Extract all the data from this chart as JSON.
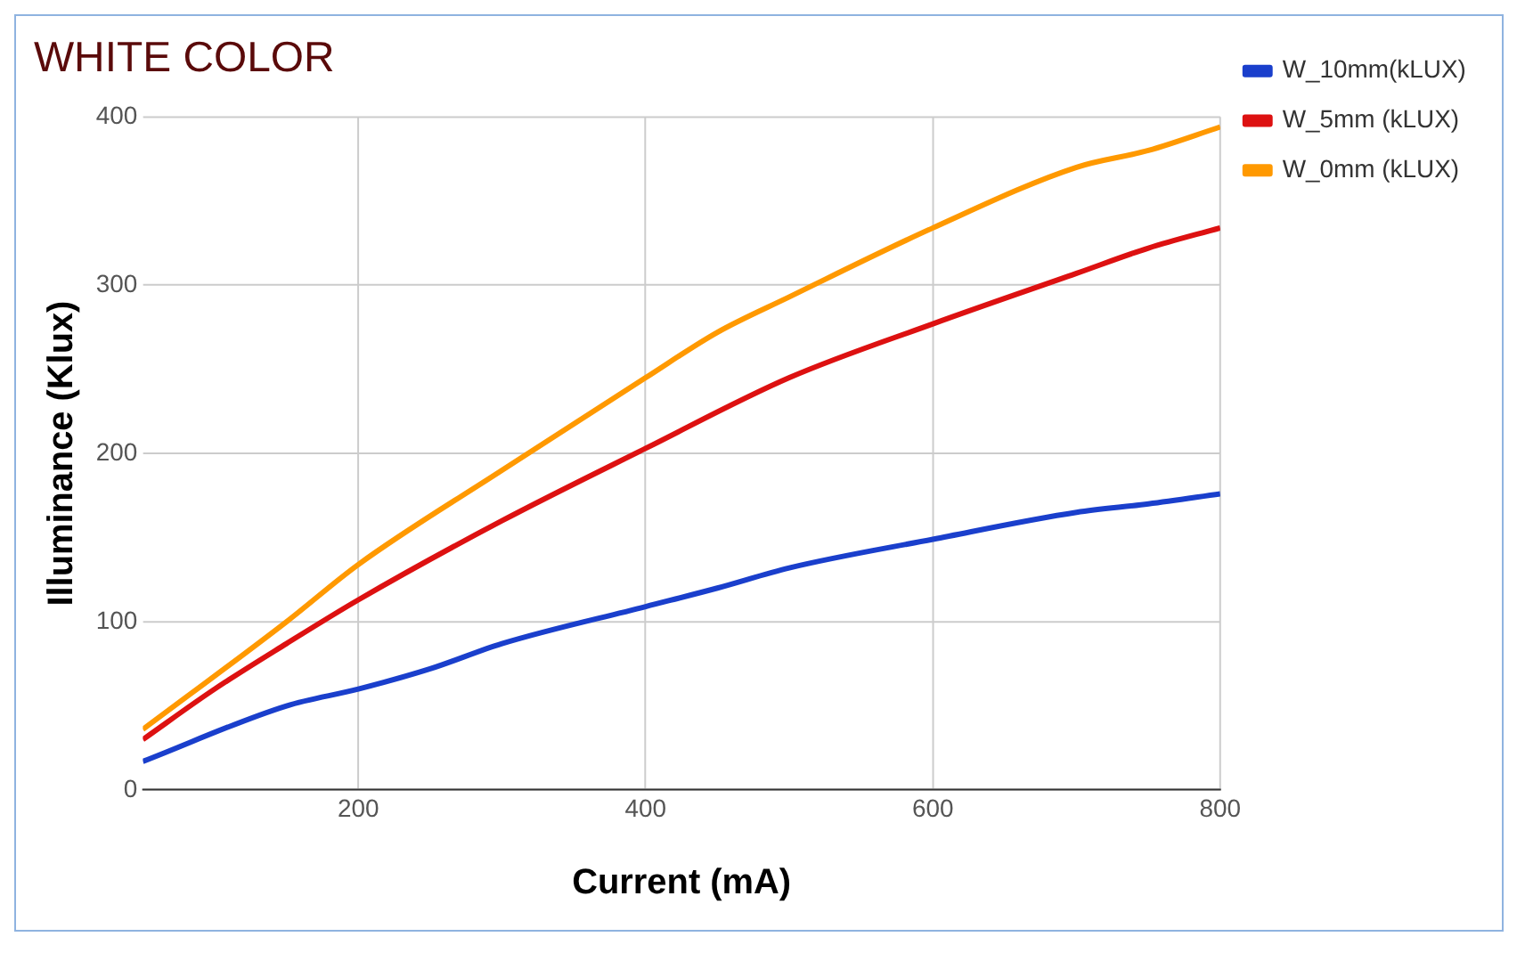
{
  "chart_data": {
    "type": "line",
    "title": "WHITE COLOR",
    "xlabel": "Current (mA)",
    "ylabel": "Illuminance (Klux)",
    "xlim": [
      50,
      800
    ],
    "xticks": [
      200,
      400,
      600,
      800
    ],
    "ylim": [
      0,
      400
    ],
    "yticks": [
      0,
      100,
      200,
      300,
      400
    ],
    "grid": true,
    "legend": "top right",
    "marker": "none",
    "line_style": "solid",
    "series": [
      {
        "name": "W_10mm(kLUX)",
        "color": "#1a3fcc",
        "x": [
          50,
          150,
          200,
          250,
          300,
          400,
          450,
          500,
          600,
          700,
          750,
          800
        ],
        "values": [
          17,
          50,
          60,
          72,
          87,
          109,
          120,
          132,
          149,
          165,
          170,
          176
        ]
      },
      {
        "name": "W_5mm (kLUX)",
        "color": "#dd1111",
        "x": [
          50,
          100,
          150,
          200,
          300,
          400,
          500,
          600,
          700,
          750,
          800
        ],
        "values": [
          30,
          60,
          87,
          113,
          160,
          203,
          245,
          277,
          307,
          322,
          334
        ]
      },
      {
        "name": "W_0mm (kLUX)",
        "color": "#ff9900",
        "x": [
          50,
          150,
          200,
          300,
          400,
          450,
          500,
          600,
          700,
          750,
          800
        ],
        "values": [
          36,
          100,
          134,
          190,
          245,
          272,
          293,
          334,
          370,
          380,
          394
        ]
      }
    ]
  }
}
